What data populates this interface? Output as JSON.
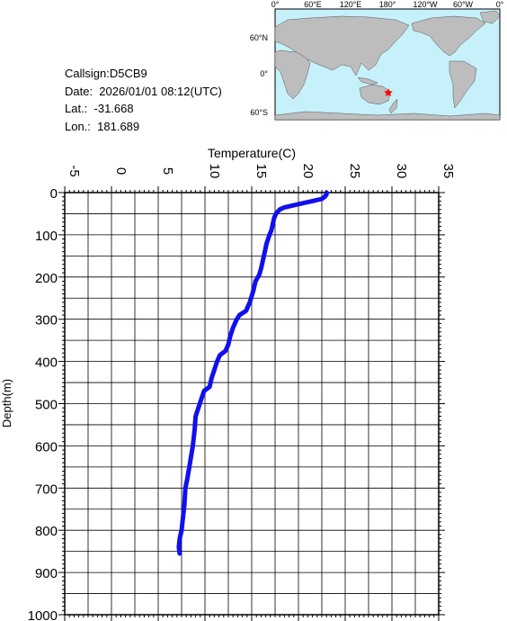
{
  "station": {
    "callsign": "Callsign:D5CB9",
    "date": "Date:  2026/01/01 08:12(UTC)",
    "lat": "Lat.:  -31.668",
    "lon": "Lon.:  181.689"
  },
  "map": {
    "top_labels": [
      "0°",
      "60°E",
      "120°E",
      "180°",
      "120°W",
      "60°W",
      "0°"
    ],
    "left_labels": [
      "60°N",
      "0°",
      "60°S"
    ],
    "ocean_color": "#c6f1fb",
    "land_color": "#bdbdbd",
    "marker_color": "#ff0000",
    "marker_icon": "star-icon"
  },
  "chart_data": {
    "type": "line",
    "xlabel": "Temperature(C)",
    "ylabel": "Depth(m)",
    "xlim": [
      -5,
      35
    ],
    "ylim": [
      1000,
      0
    ],
    "x_ticks": [
      "-5",
      "0",
      "5",
      "10",
      "15",
      "20",
      "25",
      "30",
      "35"
    ],
    "y_ticks": [
      "0",
      "100",
      "200",
      "300",
      "400",
      "500",
      "600",
      "700",
      "800",
      "900",
      "1000"
    ],
    "grid": true,
    "series": [
      {
        "color": "#1010ee",
        "points": [
          [
            23.0,
            0
          ],
          [
            23.0,
            5
          ],
          [
            22.8,
            10
          ],
          [
            22.5,
            15
          ],
          [
            21.5,
            20
          ],
          [
            20.5,
            25
          ],
          [
            19.5,
            30
          ],
          [
            18.5,
            35
          ],
          [
            18.0,
            40
          ],
          [
            17.6,
            50
          ],
          [
            17.4,
            60
          ],
          [
            17.3,
            70
          ],
          [
            17.2,
            80
          ],
          [
            17.1,
            90
          ],
          [
            16.9,
            100
          ],
          [
            16.6,
            120
          ],
          [
            16.4,
            140
          ],
          [
            16.2,
            160
          ],
          [
            16.0,
            180
          ],
          [
            15.8,
            195
          ],
          [
            15.4,
            210
          ],
          [
            15.2,
            230
          ],
          [
            14.8,
            260
          ],
          [
            14.4,
            280
          ],
          [
            13.7,
            290
          ],
          [
            13.4,
            300
          ],
          [
            13.0,
            320
          ],
          [
            12.7,
            340
          ],
          [
            12.5,
            360
          ],
          [
            12.2,
            375
          ],
          [
            11.6,
            385
          ],
          [
            11.3,
            400
          ],
          [
            11.0,
            420
          ],
          [
            10.7,
            440
          ],
          [
            10.5,
            460
          ],
          [
            9.9,
            470
          ],
          [
            9.6,
            490
          ],
          [
            9.3,
            510
          ],
          [
            9.0,
            530
          ],
          [
            8.9,
            560
          ],
          [
            8.7,
            600
          ],
          [
            8.4,
            640
          ],
          [
            8.1,
            680
          ],
          [
            7.9,
            700
          ],
          [
            7.8,
            740
          ],
          [
            7.6,
            780
          ],
          [
            7.5,
            800
          ],
          [
            7.3,
            820
          ],
          [
            7.2,
            840
          ],
          [
            7.3,
            855
          ]
        ]
      }
    ]
  }
}
